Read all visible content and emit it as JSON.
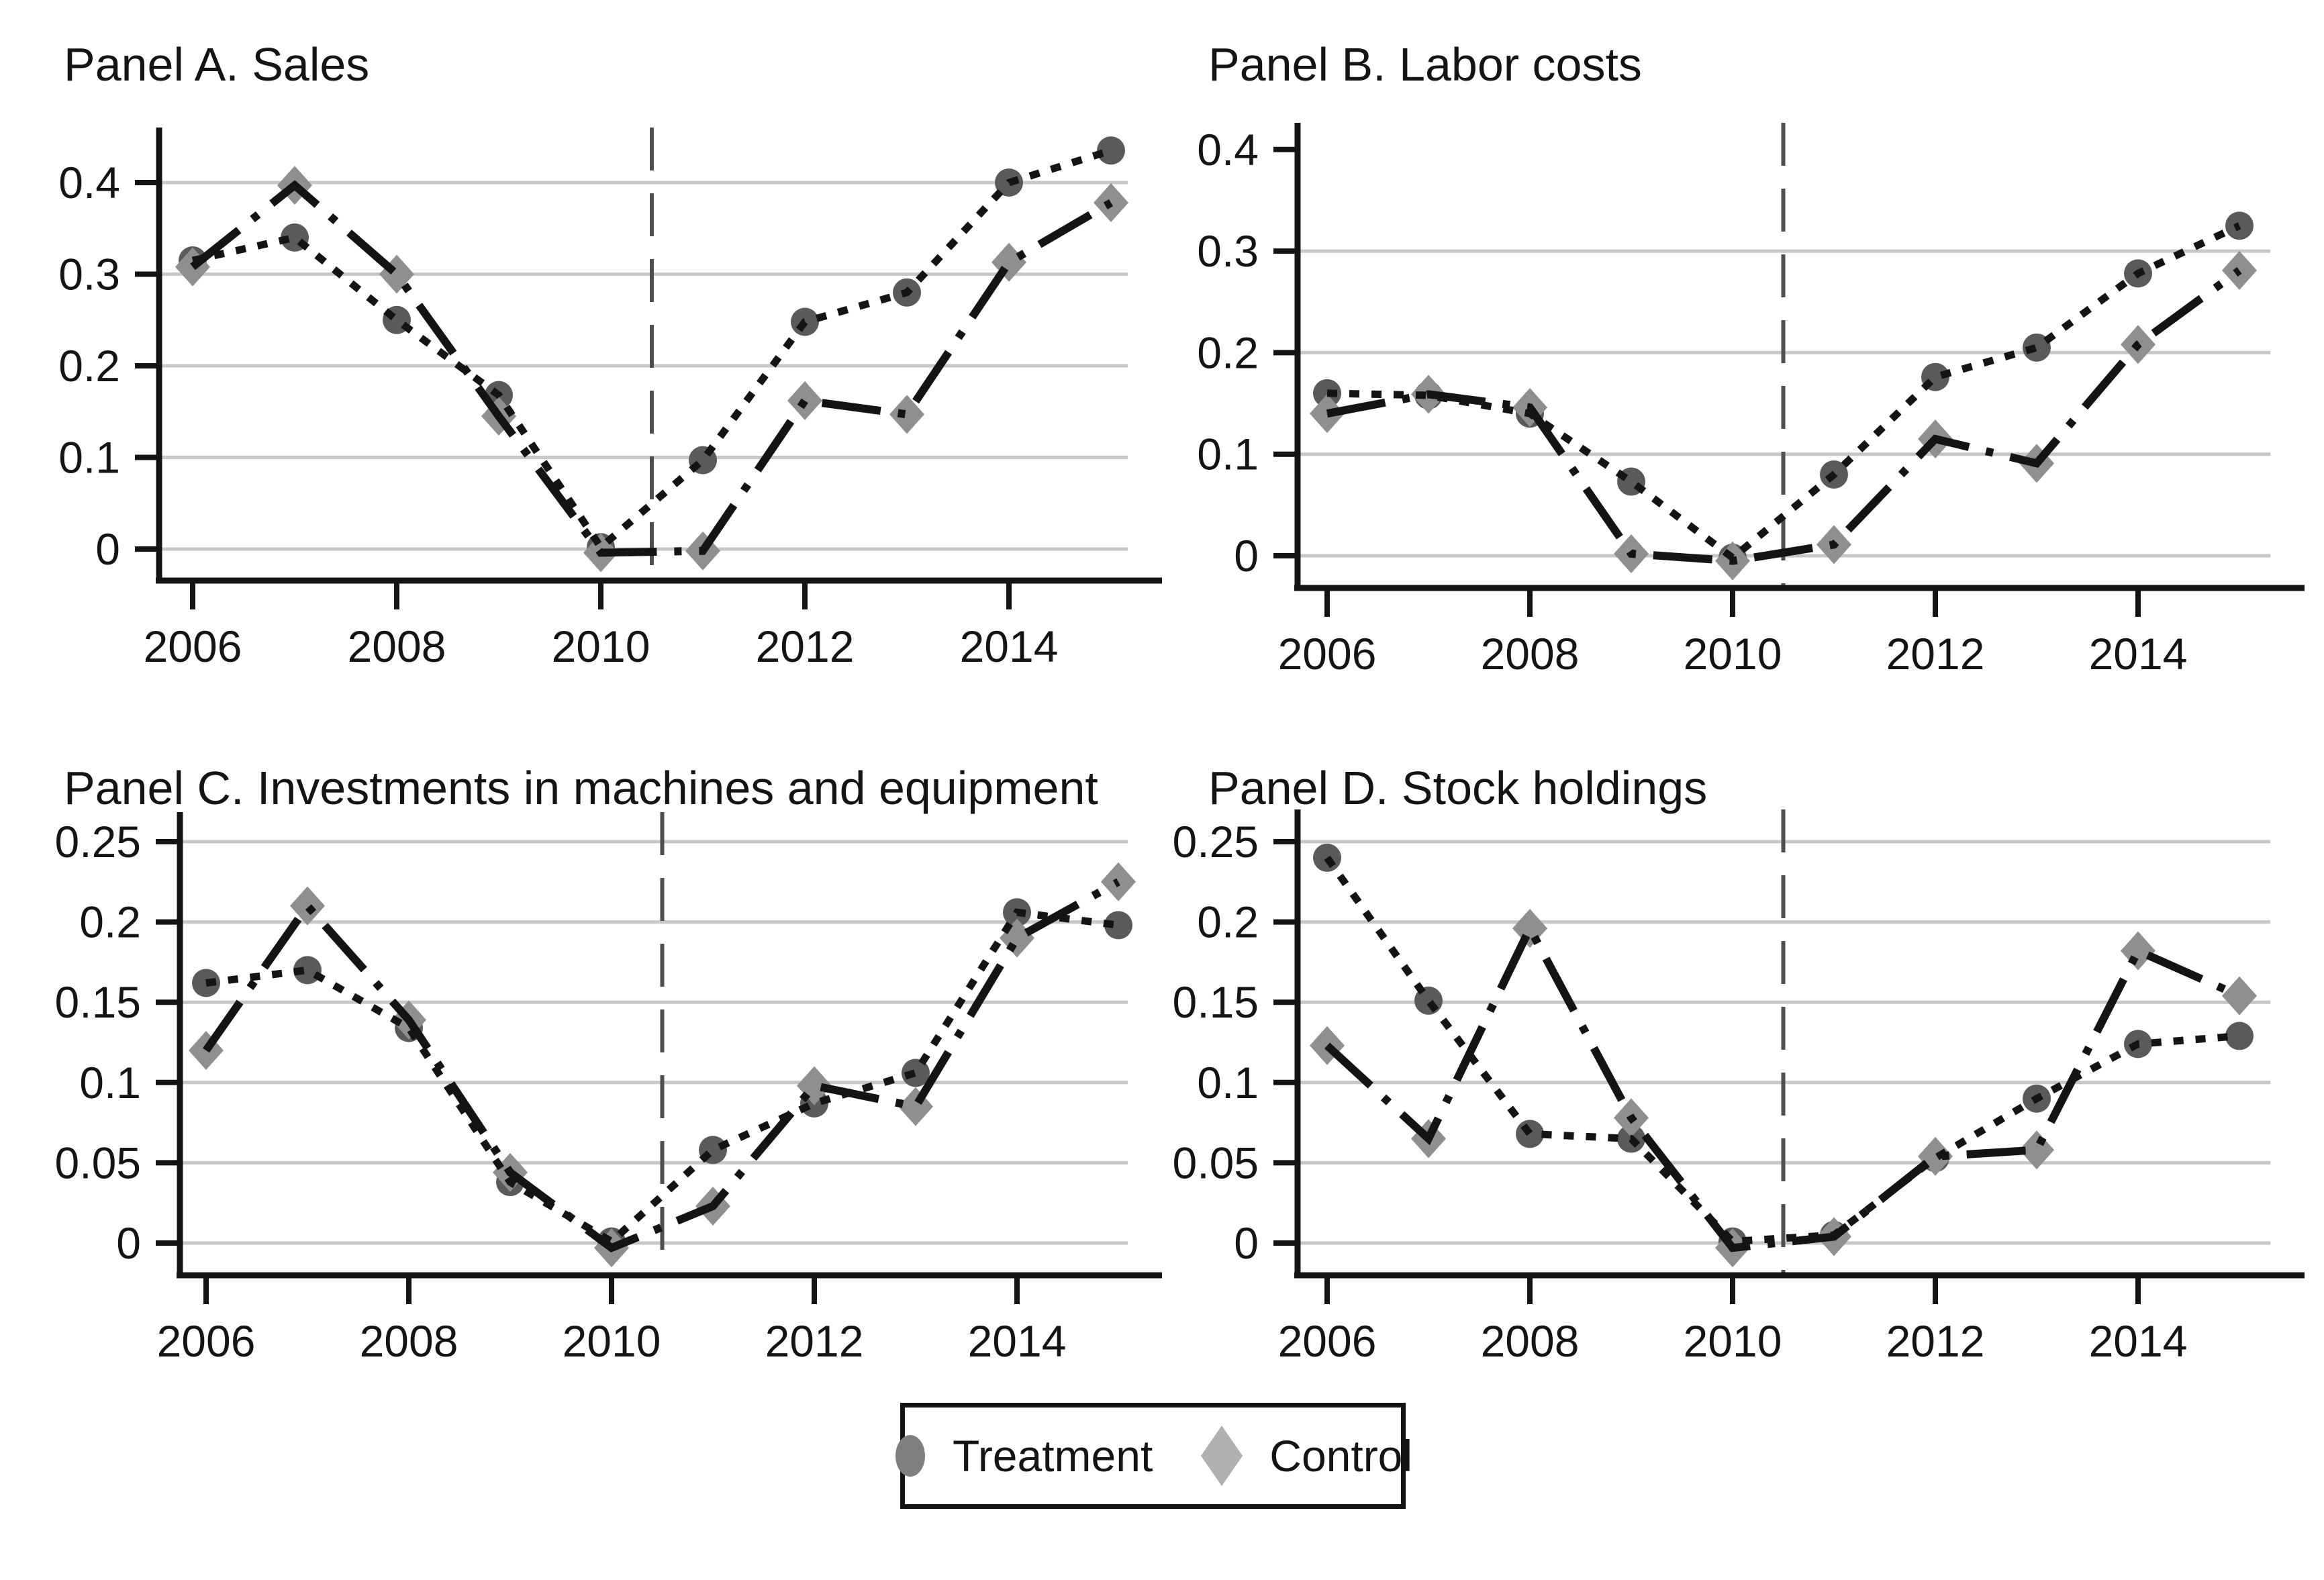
{
  "figure": {
    "legend": {
      "items": [
        {
          "label": "Treatment",
          "marker": "circle"
        },
        {
          "label": "Control",
          "marker": "diamond"
        }
      ]
    }
  },
  "colors": {
    "treatment_marker": "#5a5a5a",
    "control_marker": "#8f8f8f",
    "legend_treatment_marker": "#7f7f7f",
    "legend_control_marker": "#b0b0b0",
    "line": "#141414",
    "gridline": "#c7c7c7",
    "event_line": "#4f4f4f",
    "text": "#141414"
  },
  "chart_data": [
    {
      "type": "line",
      "panel": "A",
      "title": "Panel A. Sales",
      "x": [
        2006,
        2007,
        2008,
        2009,
        2010,
        2011,
        2012,
        2013,
        2014,
        2015
      ],
      "xticks": [
        2006,
        2008,
        2010,
        2012,
        2014
      ],
      "yticks": [
        0,
        0.1,
        0.2,
        0.3,
        0.4
      ],
      "grid_yticks": [
        0,
        0.1,
        0.2,
        0.3,
        0.4
      ],
      "ylim": [
        -0.034,
        0.46
      ],
      "event_line_x": 2010.5,
      "grid": "horizontal",
      "legend_position": "bottom-shared",
      "series": [
        {
          "name": "Treatment",
          "marker": "circle",
          "line_style": "dotted",
          "values": [
            0.315,
            0.34,
            0.25,
            0.168,
            0.002,
            0.097,
            0.248,
            0.28,
            0.4,
            0.435
          ]
        },
        {
          "name": "Control",
          "marker": "diamond",
          "line_style": "dash-dot",
          "values": [
            0.308,
            0.397,
            0.3,
            0.145,
            -0.004,
            -0.002,
            0.162,
            0.147,
            0.313,
            0.378
          ]
        }
      ]
    },
    {
      "type": "line",
      "panel": "B",
      "title": "Panel B. Labor costs",
      "x": [
        2006,
        2007,
        2008,
        2009,
        2010,
        2011,
        2012,
        2013,
        2014,
        2015
      ],
      "xticks": [
        2006,
        2008,
        2010,
        2012,
        2014
      ],
      "yticks": [
        0,
        0.1,
        0.2,
        0.3,
        0.4
      ],
      "grid_yticks": [
        0,
        0.1,
        0.2,
        0.3
      ],
      "ylim": [
        -0.032,
        0.426
      ],
      "event_line_x": 2010.5,
      "grid": "horizontal",
      "legend_position": "bottom-shared",
      "series": [
        {
          "name": "Treatment",
          "marker": "circle",
          "line_style": "dotted",
          "values": [
            0.16,
            0.158,
            0.14,
            0.073,
            -0.002,
            0.08,
            0.176,
            0.205,
            0.278,
            0.325
          ]
        },
        {
          "name": "Control",
          "marker": "diamond",
          "line_style": "dash-dot",
          "values": [
            0.14,
            0.159,
            0.146,
            0.002,
            -0.005,
            0.011,
            0.115,
            0.091,
            0.208,
            0.281
          ]
        }
      ]
    },
    {
      "type": "line",
      "panel": "C",
      "title": "Panel C. Investments in machines and equipment",
      "x": [
        2006,
        2007,
        2008,
        2009,
        2010,
        2011,
        2012,
        2013,
        2014,
        2015
      ],
      "xticks": [
        2006,
        2008,
        2010,
        2012,
        2014
      ],
      "yticks": [
        0,
        0.05,
        0.1,
        0.15,
        0.2,
        0.25
      ],
      "grid_yticks": [
        0,
        0.05,
        0.1,
        0.15,
        0.2,
        0.25
      ],
      "ylim": [
        -0.02,
        0.268
      ],
      "event_line_x": 2010.5,
      "grid": "horizontal",
      "legend_position": "bottom-shared",
      "series": [
        {
          "name": "Treatment",
          "marker": "circle",
          "line_style": "dotted",
          "values": [
            0.162,
            0.17,
            0.134,
            0.038,
            0.001,
            0.058,
            0.087,
            0.106,
            0.206,
            0.198
          ]
        },
        {
          "name": "Control",
          "marker": "diamond",
          "line_style": "dash-dot",
          "values": [
            0.12,
            0.21,
            0.139,
            0.044,
            -0.003,
            0.023,
            0.098,
            0.085,
            0.19,
            0.225
          ]
        }
      ]
    },
    {
      "type": "line",
      "panel": "D",
      "title": "Panel D. Stock holdings",
      "x": [
        2006,
        2007,
        2008,
        2009,
        2010,
        2011,
        2012,
        2013,
        2014,
        2015
      ],
      "xticks": [
        2006,
        2008,
        2010,
        2012,
        2014
      ],
      "yticks": [
        0,
        0.05,
        0.1,
        0.15,
        0.2,
        0.25
      ],
      "grid_yticks": [
        0,
        0.05,
        0.1,
        0.15,
        0.2,
        0.25
      ],
      "ylim": [
        -0.02,
        0.27
      ],
      "event_line_x": 2010.5,
      "grid": "horizontal",
      "legend_position": "bottom-shared",
      "series": [
        {
          "name": "Treatment",
          "marker": "circle",
          "line_style": "dotted",
          "values": [
            0.24,
            0.151,
            0.068,
            0.065,
            0.001,
            0.005,
            0.053,
            0.09,
            0.124,
            0.129
          ]
        },
        {
          "name": "Control",
          "marker": "diamond",
          "line_style": "dash-dot",
          "values": [
            0.123,
            0.065,
            0.196,
            0.078,
            -0.003,
            0.004,
            0.054,
            0.058,
            0.182,
            0.154
          ]
        }
      ]
    }
  ]
}
